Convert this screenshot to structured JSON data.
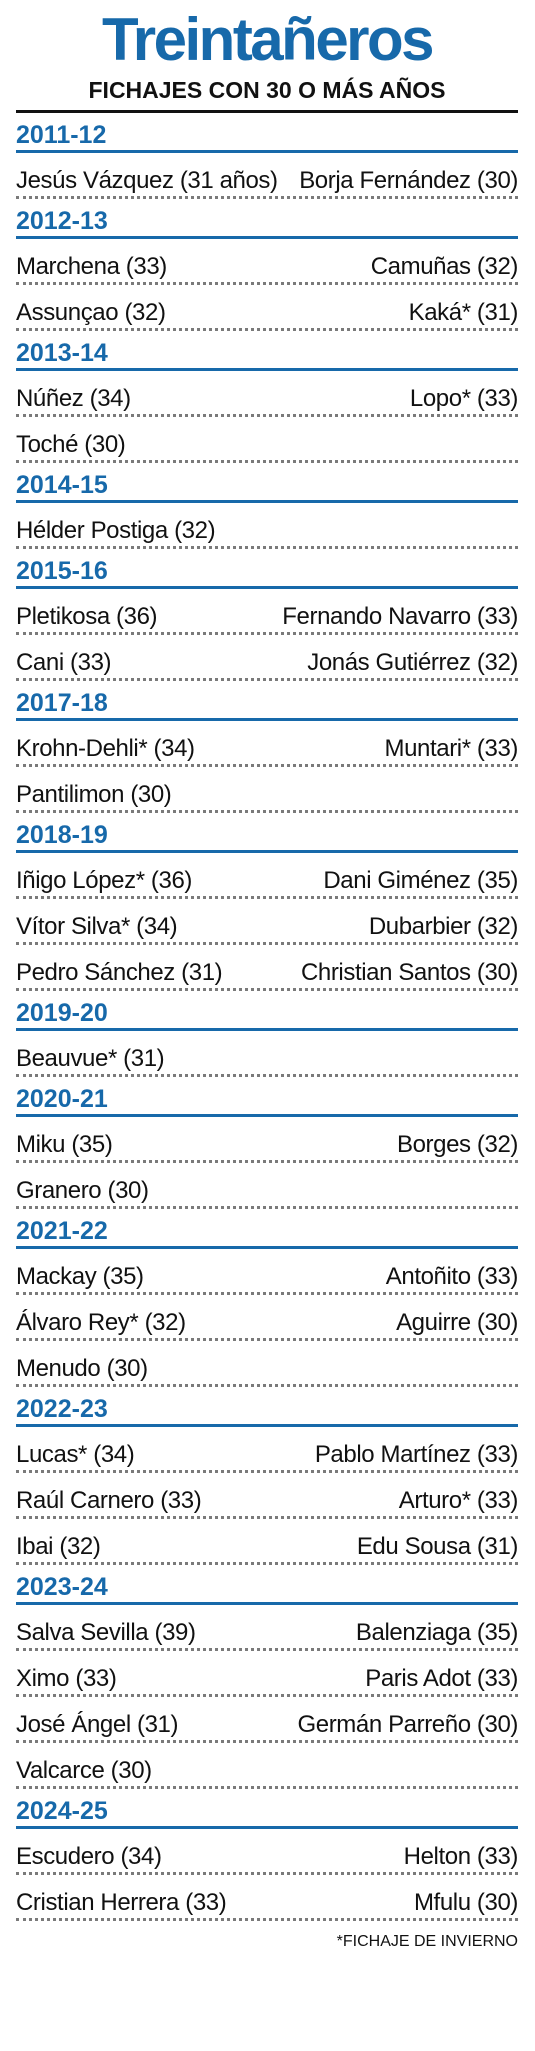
{
  "title": "Treintañeros",
  "subtitle": "FICHAJES CON 30 O MÁS AÑOS",
  "footnote": "*FICHAJE DE INVIERNO",
  "seasons": [
    {
      "label": "2011-12",
      "rows": [
        [
          "Jesús Vázquez (31 años)",
          "Borja Fernández (30)"
        ]
      ]
    },
    {
      "label": "2012-13",
      "rows": [
        [
          "Marchena (33)",
          "Camuñas (32)"
        ],
        [
          "Assunçao (32)",
          "Kaká* (31)"
        ]
      ]
    },
    {
      "label": "2013-14",
      "rows": [
        [
          "Núñez (34)",
          "Lopo* (33)"
        ],
        [
          "Toché (30)",
          ""
        ]
      ]
    },
    {
      "label": "2014-15",
      "rows": [
        [
          "Hélder Postiga (32)",
          ""
        ]
      ]
    },
    {
      "label": "2015-16",
      "rows": [
        [
          "Pletikosa (36)",
          "Fernando Navarro (33)"
        ],
        [
          "Cani (33)",
          "Jonás Gutiérrez (32)"
        ]
      ]
    },
    {
      "label": "2017-18",
      "rows": [
        [
          "Krohn-Dehli* (34)",
          "Muntari* (33)"
        ],
        [
          "Pantilimon (30)",
          ""
        ]
      ]
    },
    {
      "label": "2018-19",
      "rows": [
        [
          "Iñigo López* (36)",
          "Dani Giménez (35)"
        ],
        [
          "Vítor Silva* (34)",
          "Dubarbier (32)"
        ],
        [
          "Pedro Sánchez (31)",
          "Christian Santos (30)"
        ]
      ]
    },
    {
      "label": "2019-20",
      "rows": [
        [
          "Beauvue* (31)",
          ""
        ]
      ]
    },
    {
      "label": "2020-21",
      "rows": [
        [
          "Miku (35)",
          "Borges (32)"
        ],
        [
          "Granero (30)",
          ""
        ]
      ]
    },
    {
      "label": "2021-22",
      "rows": [
        [
          "Mackay (35)",
          "Antoñito (33)"
        ],
        [
          "Álvaro Rey* (32)",
          "Aguirre (30)"
        ],
        [
          "Menudo (30)",
          ""
        ]
      ]
    },
    {
      "label": "2022-23",
      "rows": [
        [
          "Lucas* (34)",
          "Pablo Martínez (33)"
        ],
        [
          "Raúl Carnero (33)",
          "Arturo* (33)"
        ],
        [
          "Ibai (32)",
          "Edu Sousa (31)"
        ]
      ]
    },
    {
      "label": "2023-24",
      "rows": [
        [
          "Salva Sevilla (39)",
          "Balenziaga (35)"
        ],
        [
          "Ximo (33)",
          "Paris Adot (33)"
        ],
        [
          "José Ángel (31)",
          "Germán Parreño (30)"
        ],
        [
          "Valcarce (30)",
          ""
        ]
      ]
    },
    {
      "label": "2024-25",
      "rows": [
        [
          "Escudero (34)",
          "Helton (33)"
        ],
        [
          "Cristian Herrera (33)",
          "Mfulu (30)"
        ]
      ]
    }
  ]
}
